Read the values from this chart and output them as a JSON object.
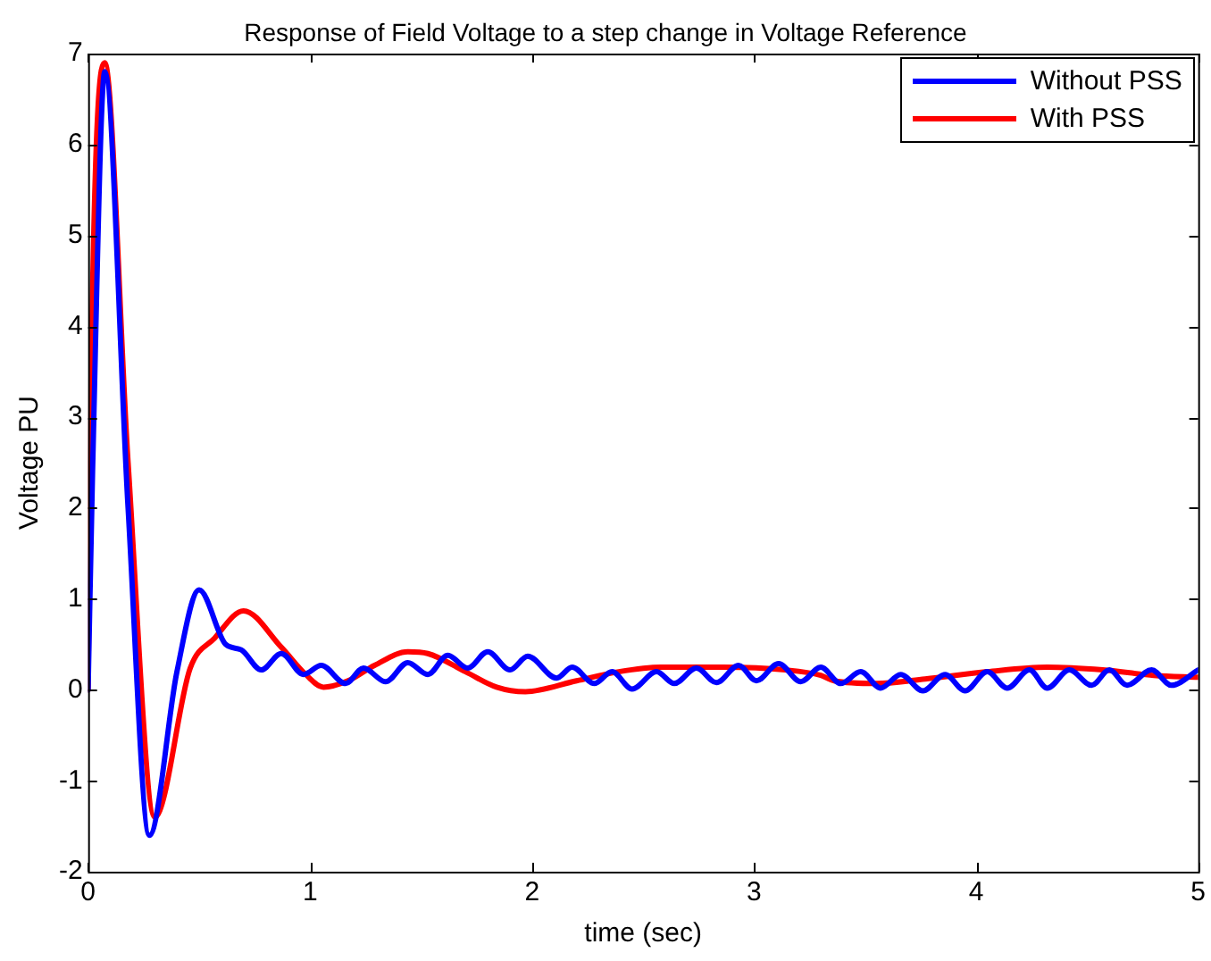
{
  "chart_data": {
    "type": "line",
    "title": "Response of Field Voltage to a step change in Voltage Reference",
    "xlabel": "time (sec)",
    "ylabel": "Voltage PU",
    "xlim": [
      0,
      5
    ],
    "xticks": [
      0,
      1,
      2,
      3,
      4,
      5
    ],
    "ylim": [
      -2,
      7
    ],
    "yticks": [
      -2,
      -1,
      0,
      1,
      2,
      3,
      4,
      5,
      6,
      7
    ],
    "grid": false,
    "legend": "top right",
    "line_style": "solid",
    "marker": "none",
    "series": [
      {
        "name": "Without PSS",
        "color": "#0000ff",
        "x": [
          0,
          0.02,
          0.075,
          0.18,
          0.276,
          0.4,
          0.5,
          0.62,
          0.69,
          0.78,
          0.87,
          0.97,
          1.05,
          1.16,
          1.24,
          1.34,
          1.44,
          1.53,
          1.62,
          1.71,
          1.8,
          1.9,
          1.98,
          2.11,
          2.18,
          2.28,
          2.36,
          2.45,
          2.56,
          2.64,
          2.74,
          2.83,
          2.93,
          3.01,
          3.11,
          3.21,
          3.3,
          3.39,
          3.48,
          3.57,
          3.66,
          3.76,
          3.86,
          3.95,
          4.05,
          4.14,
          4.24,
          4.32,
          4.42,
          4.52,
          4.6,
          4.68,
          4.79,
          4.88,
          5
        ],
        "values": [
          0,
          2.4,
          6.8,
          2.0,
          -1.6,
          0.2,
          1.1,
          0.5,
          0.44,
          0.22,
          0.4,
          0.17,
          0.27,
          0.07,
          0.24,
          0.09,
          0.3,
          0.17,
          0.38,
          0.24,
          0.42,
          0.22,
          0.37,
          0.13,
          0.25,
          0.07,
          0.2,
          0.01,
          0.2,
          0.07,
          0.24,
          0.08,
          0.27,
          0.1,
          0.29,
          0.09,
          0.25,
          0.07,
          0.2,
          0.02,
          0.17,
          -0.01,
          0.17,
          -0.01,
          0.2,
          0.02,
          0.22,
          0.02,
          0.22,
          0.05,
          0.22,
          0.05,
          0.22,
          0.05,
          0.22
        ]
      },
      {
        "name": "With PSS",
        "color": "#ff0000",
        "x": [
          0,
          0.013,
          0.075,
          0.18,
          0.3,
          0.46,
          0.57,
          0.7,
          0.87,
          0.98,
          1.06,
          1.17,
          1.29,
          1.44,
          1.53,
          1.7,
          1.84,
          1.97,
          2.2,
          2.39,
          2.58,
          2.86,
          3.14,
          3.3,
          3.36,
          3.55,
          3.77,
          4.05,
          4.32,
          4.57,
          4.8,
          5
        ],
        "values": [
          0,
          3.4,
          6.9,
          2.5,
          -1.4,
          0.24,
          0.57,
          0.87,
          0.47,
          0.17,
          0.03,
          0.1,
          0.27,
          0.42,
          0.4,
          0.2,
          0.03,
          -0.02,
          0.1,
          0.2,
          0.25,
          0.25,
          0.22,
          0.16,
          0.1,
          0.07,
          0.12,
          0.2,
          0.25,
          0.22,
          0.16,
          0.14
        ]
      }
    ]
  }
}
